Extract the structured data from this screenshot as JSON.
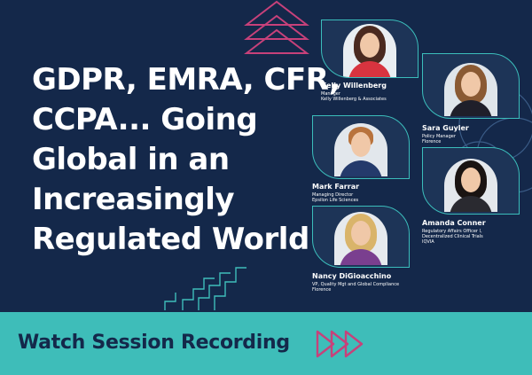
{
  "headline": [
    "GDPR, EMRA, CFR,",
    "CCPA... Going",
    "Global in an",
    "Increasingly",
    "Regulated World"
  ],
  "speakers": [
    {
      "name": "Kelly Willenberg",
      "role_line1": "Manager",
      "role_line2": "Kelly Willenberg & Associates",
      "icon": "woman-portrait",
      "hair": "#4a2a20",
      "clothing": "#d8343f",
      "backdrop": "#e9eef2"
    },
    {
      "name": "Sara Guyler",
      "role_line1": "Policy Manager",
      "role_line2": "Florence",
      "icon": "woman-portrait",
      "hair": "#8a5a33",
      "clothing": "#1f1f2a",
      "backdrop": "#dfe5ea"
    },
    {
      "name": "Mark Farrar",
      "role_line1": "Managing Director",
      "role_line2": "Epsilon Life Sciences",
      "icon": "man-portrait",
      "hair": "#b8733d",
      "clothing": "#243a6b",
      "backdrop": "#e2e7ec"
    },
    {
      "name": "Amanda Conner",
      "role_line1": "Regulatory Affairs Officer I,",
      "role_line2": "Decentralized Clinical Trials",
      "role_line3": "IQVIA",
      "icon": "woman-portrait",
      "hair": "#1a1412",
      "clothing": "#2a2a30",
      "backdrop": "#e4e8ec"
    },
    {
      "name": "Nancy DiGioacchino",
      "role_line1": "VP, Quality Mgt and Global Compliance",
      "role_line2": "Florence",
      "icon": "woman-portrait",
      "hair": "#d9b46a",
      "clothing": "#7a3f8f",
      "backdrop": "#e6eaee"
    }
  ],
  "cta": {
    "label": "Watch Session Recording",
    "arrow_icon": "triple-chevron-right-icon"
  },
  "colors": {
    "background": "#14284a",
    "accent_teal": "#3ebdb9",
    "accent_pink": "#c7417a",
    "text": "#ffffff",
    "cta_text": "#14284a"
  }
}
